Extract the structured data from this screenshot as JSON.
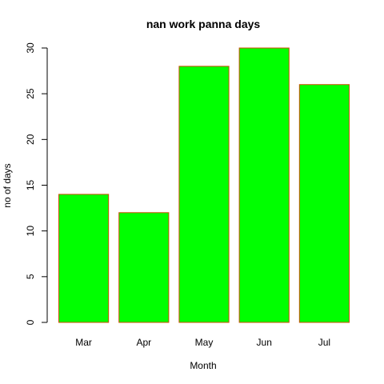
{
  "chart_data": {
    "type": "bar",
    "title": "nan work panna days",
    "xlabel": "Month",
    "ylabel": "no of days",
    "categories": [
      "Mar",
      "Apr",
      "May",
      "Jun",
      "Jul"
    ],
    "values": [
      14,
      12,
      28,
      30,
      26
    ],
    "ylim": [
      0,
      30
    ],
    "yticks": [
      "0",
      "5",
      "10",
      "15",
      "20",
      "25",
      "30"
    ],
    "grid": false,
    "legend": "none",
    "colors": {
      "bar_fill": "#00ff00",
      "bar_border": "#cc4d00",
      "axis": "#000000"
    }
  }
}
